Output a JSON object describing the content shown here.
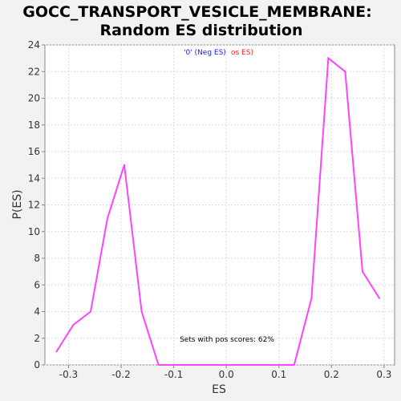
{
  "chart_data": {
    "type": "line",
    "title_line1": "GOCC_TRANSPORT_VESICLE_MEMBRANE:",
    "title_line2": "Random ES distribution",
    "xlabel": "ES",
    "ylabel": "P(ES)",
    "xlim": [
      -0.345,
      0.32
    ],
    "ylim": [
      0,
      24
    ],
    "xticks": [
      "-0.3",
      "-0.2",
      "-0.1",
      "0.0",
      "0.1",
      "0.2",
      "0.3"
    ],
    "xtick_values": [
      -0.3,
      -0.2,
      -0.1,
      0.0,
      0.1,
      0.2,
      0.3
    ],
    "yticks": [
      "0",
      "2",
      "4",
      "6",
      "8",
      "10",
      "12",
      "14",
      "16",
      "18",
      "20",
      "22",
      "24"
    ],
    "ytick_values": [
      0,
      2,
      4,
      6,
      8,
      10,
      12,
      14,
      16,
      18,
      20,
      22,
      24
    ],
    "grid": true,
    "legend_neg": "'0' (Neg ES)",
    "legend_pos": "os ES)",
    "legend_neg_color": "#1a1aff",
    "legend_pos_color": "#ff2020",
    "annotation": "Sets with pos scores: 62%",
    "series": [
      {
        "color": "#ff44ff",
        "x": [
          -0.323,
          -0.291,
          -0.258,
          -0.226,
          -0.194,
          -0.161,
          -0.129,
          -0.097,
          -0.064,
          -0.032,
          0.0,
          0.032,
          0.065,
          0.097,
          0.129,
          0.162,
          0.194,
          0.226,
          0.259,
          0.291
        ],
        "y": [
          1,
          3,
          4,
          11,
          15,
          4,
          0,
          0,
          0,
          0,
          0,
          0,
          0,
          0,
          0,
          5,
          23,
          22,
          7,
          5
        ]
      }
    ]
  }
}
